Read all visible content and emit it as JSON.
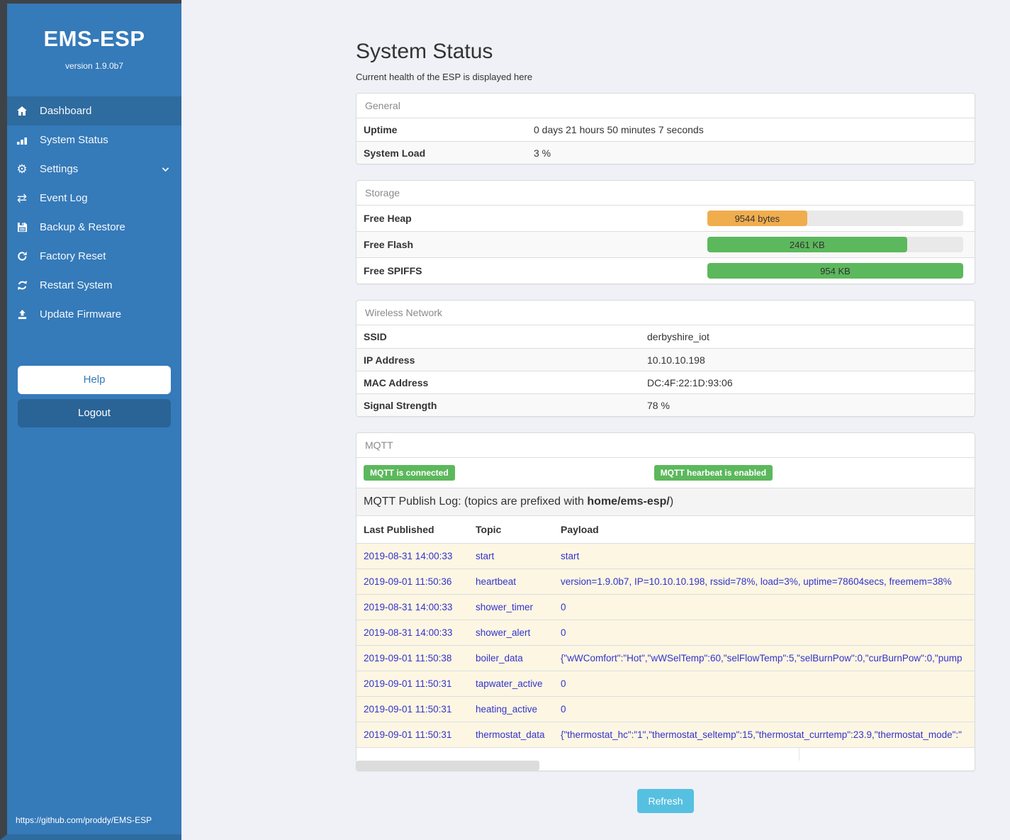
{
  "sidebar": {
    "title": "EMS-ESP",
    "version": "version 1.9.0b7",
    "items": [
      {
        "label": "Dashboard"
      },
      {
        "label": "System Status"
      },
      {
        "label": "Settings"
      },
      {
        "label": "Event Log"
      },
      {
        "label": "Backup & Restore"
      },
      {
        "label": "Factory Reset"
      },
      {
        "label": "Restart System"
      },
      {
        "label": "Update Firmware"
      }
    ],
    "help_label": "Help",
    "logout_label": "Logout",
    "footer_link": "https://github.com/proddy/EMS-ESP"
  },
  "page": {
    "title": "System Status",
    "subtitle": "Current health of the ESP is displayed here"
  },
  "general": {
    "header": "General",
    "rows": [
      {
        "label": "Uptime",
        "value": "0 days 21 hours 50 minutes 7 seconds"
      },
      {
        "label": "System Load",
        "value": "3 %"
      }
    ]
  },
  "storage": {
    "header": "Storage",
    "rows": [
      {
        "label": "Free Heap",
        "value": "9544 bytes",
        "percent": 39,
        "color": "#f0ad4e"
      },
      {
        "label": "Free Flash",
        "value": "2461 KB",
        "percent": 78,
        "color": "#5cb85c"
      },
      {
        "label": "Free SPIFFS",
        "value": "954 KB",
        "percent": 100,
        "color": "#5cb85c"
      }
    ]
  },
  "wireless": {
    "header": "Wireless Network",
    "rows": [
      {
        "label": "SSID",
        "value": "derbyshire_iot"
      },
      {
        "label": "IP Address",
        "value": "10.10.10.198"
      },
      {
        "label": "MAC Address",
        "value": "DC:4F:22:1D:93:06"
      },
      {
        "label": "Signal Strength",
        "value": "78 %"
      }
    ]
  },
  "mqtt": {
    "header": "MQTT",
    "badges": [
      {
        "label": "MQTT is connected"
      },
      {
        "label": "MQTT hearbeat is enabled"
      }
    ],
    "log_title": {
      "prefix": "MQTT Publish Log: (topics are prefixed with ",
      "bold": "home/ems-esp/",
      "suffix": ")"
    },
    "columns": [
      {
        "label": "Last Published"
      },
      {
        "label": "Topic"
      },
      {
        "label": "Payload"
      }
    ],
    "rows": [
      {
        "published": "2019-08-31 14:00:33",
        "topic": "start",
        "payload": "start"
      },
      {
        "published": "2019-09-01 11:50:36",
        "topic": "heartbeat",
        "payload": "version=1.9.0b7, IP=10.10.10.198, rssid=78%, load=3%, uptime=78604secs, freemem=38%"
      },
      {
        "published": "2019-08-31 14:00:33",
        "topic": "shower_timer",
        "payload": "0"
      },
      {
        "published": "2019-08-31 14:00:33",
        "topic": "shower_alert",
        "payload": "0"
      },
      {
        "published": "2019-09-01 11:50:38",
        "topic": "boiler_data",
        "payload": "{\"wWComfort\":\"Hot\",\"wWSelTemp\":60,\"selFlowTemp\":5,\"selBurnPow\":0,\"curBurnPow\":0,\"pump"
      },
      {
        "published": "2019-09-01 11:50:31",
        "topic": "tapwater_active",
        "payload": "0"
      },
      {
        "published": "2019-09-01 11:50:31",
        "topic": "heating_active",
        "payload": "0"
      },
      {
        "published": "2019-09-01 11:50:31",
        "topic": "thermostat_data",
        "payload": "{\"thermostat_hc\":\"1\",\"thermostat_seltemp\":15,\"thermostat_currtemp\":23.9,\"thermostat_mode\":\""
      }
    ]
  },
  "refresh_label": "Refresh",
  "colors": {
    "sidebar_blue": "#357ab9",
    "sidebar_active_blue": "#2e6b9f",
    "badge_green": "#5cb85c",
    "bar_orange": "#f0ad4e",
    "bar_green": "#5cb85c",
    "refresh_blue": "#56c0e0",
    "log_text_blue": "#3333cc"
  }
}
